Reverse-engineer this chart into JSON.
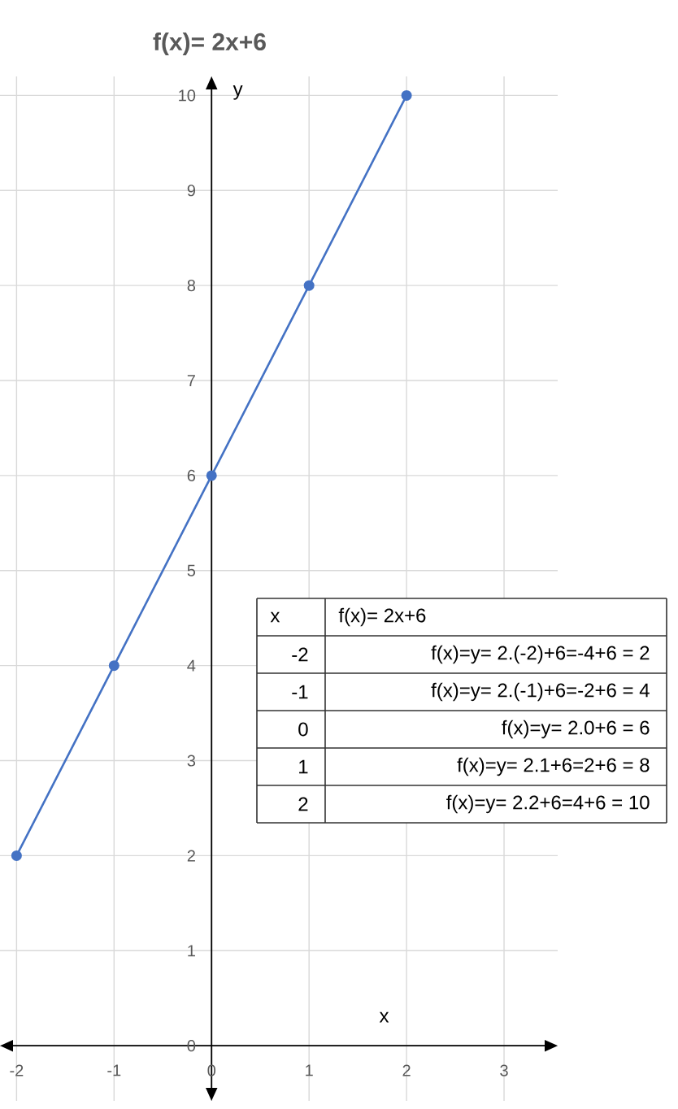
{
  "chart_data": {
    "type": "line",
    "title": "f(x)= 2x+6",
    "xlabel": "x",
    "ylabel": "y",
    "x": [
      -2,
      -1,
      0,
      1,
      2
    ],
    "series": [
      {
        "color": "#4472c4",
        "values": [
          2,
          4,
          6,
          8,
          10
        ]
      }
    ],
    "xlim": [
      -2.17,
      3.55
    ],
    "ylim": [
      -0.58,
      10.2
    ],
    "xticks": [
      -2,
      -1,
      0,
      1,
      2,
      3
    ],
    "yticks": [
      0,
      1,
      2,
      3,
      4,
      5,
      6,
      7,
      8,
      9,
      10
    ],
    "grid": true,
    "marker": "circle",
    "line_style": "solid",
    "annotations": [
      "x",
      "f(x)= 2x+6",
      "-2",
      "f(x)=y= 2.(-2)+6=-4+6 = 2",
      "-1",
      "f(x)=y= 2.(-1)+6=-2+6 = 4",
      "0",
      "f(x)=y= 2.0+6 = 6",
      "1",
      "f(x)=y= 2.1+6=2+6 = 8",
      "2",
      "f(x)=y= 2.2+6=4+6 = 10"
    ]
  }
}
